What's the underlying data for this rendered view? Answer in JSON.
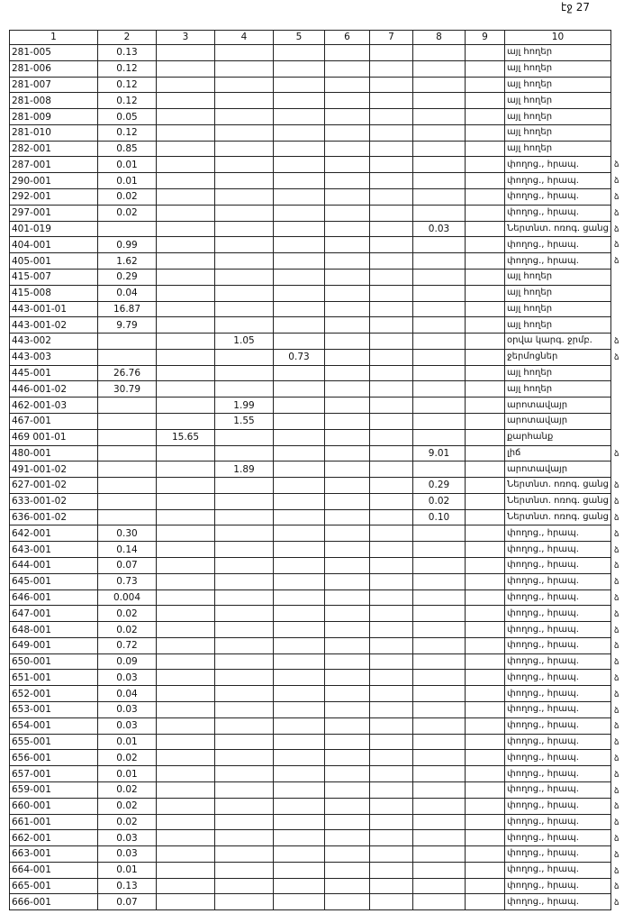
{
  "header": {
    "page": "էջ 27"
  },
  "table": {
    "columns": [
      "1",
      "2",
      "3",
      "4",
      "5",
      "6",
      "7",
      "8",
      "9",
      "10"
    ],
    "rows": [
      {
        "c": [
          "281-005",
          "0.13",
          null,
          null,
          null,
          null,
          null,
          null,
          null,
          "այլ հողեր"
        ]
      },
      {
        "c": [
          "281-006",
          "0.12",
          null,
          null,
          null,
          null,
          null,
          null,
          null,
          "այլ հողեր"
        ]
      },
      {
        "c": [
          "281-007",
          "0.12",
          null,
          null,
          null,
          null,
          null,
          null,
          null,
          "այլ հողեր"
        ]
      },
      {
        "c": [
          "281-008",
          "0.12",
          null,
          null,
          null,
          null,
          null,
          null,
          null,
          "այլ հողեր"
        ]
      },
      {
        "c": [
          "281-009",
          "0.05",
          null,
          null,
          null,
          null,
          null,
          null,
          null,
          "այլ հողեր"
        ]
      },
      {
        "c": [
          "281-010",
          "0.12",
          null,
          null,
          null,
          null,
          null,
          null,
          null,
          "այլ հողեր"
        ]
      },
      {
        "c": [
          "282-001",
          "0.85",
          null,
          null,
          null,
          null,
          null,
          null,
          null,
          "այլ հողեր"
        ]
      },
      {
        "c": [
          "287-001",
          "0.01",
          null,
          null,
          null,
          null,
          null,
          null,
          null,
          "փողոց., հրապ."
        ],
        "m": "ձ"
      },
      {
        "c": [
          "290-001",
          "0.01",
          null,
          null,
          null,
          null,
          null,
          null,
          null,
          "փողոց., հրապ."
        ],
        "m": "ձ"
      },
      {
        "c": [
          "292-001",
          "0.02",
          null,
          null,
          null,
          null,
          null,
          null,
          null,
          "փողոց., հրապ."
        ],
        "m": "ձ"
      },
      {
        "c": [
          "297-001",
          "0.02",
          null,
          null,
          null,
          null,
          null,
          null,
          null,
          "փողոց., հրապ."
        ],
        "m": "ձ"
      },
      {
        "c": [
          "401-019",
          null,
          null,
          null,
          null,
          null,
          null,
          "0.03",
          null,
          "Ներտնտ. ոռոգ. ցանց"
        ],
        "m": "ձ"
      },
      {
        "c": [
          "404-001",
          "0.99",
          null,
          null,
          null,
          null,
          null,
          null,
          null,
          "փողոց., հրապ."
        ],
        "m": "ձ"
      },
      {
        "c": [
          "405-001",
          "1.62",
          null,
          null,
          null,
          null,
          null,
          null,
          null,
          "փողոց., հրապ."
        ],
        "m": "ձ"
      },
      {
        "c": [
          "415-007",
          "0.29",
          null,
          null,
          null,
          null,
          null,
          null,
          null,
          "այլ հողեր"
        ]
      },
      {
        "c": [
          "415-008",
          "0.04",
          null,
          null,
          null,
          null,
          null,
          null,
          null,
          "այլ հողեր"
        ]
      },
      {
        "c": [
          "443-001-01",
          "16.87",
          null,
          null,
          null,
          null,
          null,
          null,
          null,
          "այլ հողեր"
        ]
      },
      {
        "c": [
          "443-001-02",
          "9.79",
          null,
          null,
          null,
          null,
          null,
          null,
          null,
          "այլ հողեր"
        ]
      },
      {
        "c": [
          "443-002",
          null,
          null,
          "1.05",
          null,
          null,
          null,
          null,
          null,
          "օրվա կարգ. ջրմբ."
        ],
        "m": "ձ"
      },
      {
        "c": [
          "443-003",
          null,
          null,
          null,
          "0.73",
          null,
          null,
          null,
          null,
          "ջերմոցներ"
        ],
        "m": "ձ"
      },
      {
        "c": [
          "445-001",
          "26.76",
          null,
          null,
          null,
          null,
          null,
          null,
          null,
          "այլ հողեր"
        ]
      },
      {
        "c": [
          "446-001-02",
          "30.79",
          null,
          null,
          null,
          null,
          null,
          null,
          null,
          "այլ հողեր"
        ]
      },
      {
        "c": [
          "462-001-03",
          null,
          null,
          "1.99",
          null,
          null,
          null,
          null,
          null,
          "արոտավայր"
        ]
      },
      {
        "c": [
          "467-001",
          null,
          null,
          "1.55",
          null,
          null,
          null,
          null,
          null,
          "արոտավայր"
        ]
      },
      {
        "c": [
          "469 001-01",
          null,
          "15.65",
          null,
          null,
          null,
          null,
          null,
          null,
          "քարհանք"
        ]
      },
      {
        "c": [
          "480-001",
          null,
          null,
          null,
          null,
          null,
          null,
          "9.01",
          null,
          "լիճ"
        ],
        "m": "ձ"
      },
      {
        "c": [
          "491-001-02",
          null,
          null,
          "1.89",
          null,
          null,
          null,
          null,
          null,
          "արոտավայր"
        ]
      },
      {
        "c": [
          "627-001-02",
          null,
          null,
          null,
          null,
          null,
          null,
          "0.29",
          null,
          "Ներտնտ. ոռոգ. ցանց"
        ],
        "m": "ձ"
      },
      {
        "c": [
          "633-001-02",
          null,
          null,
          null,
          null,
          null,
          null,
          "0.02",
          null,
          "Ներտնտ. ոռոգ. ցանց"
        ],
        "m": "ձ"
      },
      {
        "c": [
          "636-001-02",
          null,
          null,
          null,
          null,
          null,
          null,
          "0.10",
          null,
          "Ներտնտ. ոռոգ. ցանց"
        ],
        "m": "ձ"
      },
      {
        "c": [
          "642-001",
          "0.30",
          null,
          null,
          null,
          null,
          null,
          null,
          null,
          "փողոց., հրապ."
        ],
        "m": "ձ"
      },
      {
        "c": [
          "643-001",
          "0.14",
          null,
          null,
          null,
          null,
          null,
          null,
          null,
          "փողոց., հրապ."
        ],
        "m": "ձ"
      },
      {
        "c": [
          "644-001",
          "0.07",
          null,
          null,
          null,
          null,
          null,
          null,
          null,
          "փողոց., հրապ."
        ],
        "m": "ձ"
      },
      {
        "c": [
          "645-001",
          "0.73",
          null,
          null,
          null,
          null,
          null,
          null,
          null,
          "փողոց., հրապ."
        ],
        "m": "ձ"
      },
      {
        "c": [
          "646-001",
          "0.004",
          null,
          null,
          null,
          null,
          null,
          null,
          null,
          "փողոց., հրապ."
        ],
        "m": "ձ"
      },
      {
        "c": [
          "647-001",
          "0.02",
          null,
          null,
          null,
          null,
          null,
          null,
          null,
          "փողոց., հրապ."
        ],
        "m": "ձ"
      },
      {
        "c": [
          "648-001",
          "0.02",
          null,
          null,
          null,
          null,
          null,
          null,
          null,
          "փողոց., հրապ."
        ],
        "m": "ձ"
      },
      {
        "c": [
          "649-001",
          "0.72",
          null,
          null,
          null,
          null,
          null,
          null,
          null,
          "փողոց., հրապ."
        ],
        "m": "ձ"
      },
      {
        "c": [
          "650-001",
          "0.09",
          null,
          null,
          null,
          null,
          null,
          null,
          null,
          "փողոց., հրապ."
        ],
        "m": "ձ"
      },
      {
        "c": [
          "651-001",
          "0.03",
          null,
          null,
          null,
          null,
          null,
          null,
          null,
          "փողոց., հրապ."
        ],
        "m": "ձ"
      },
      {
        "c": [
          "652-001",
          "0.04",
          null,
          null,
          null,
          null,
          null,
          null,
          null,
          "փողոց., հրապ."
        ],
        "m": "ձ"
      },
      {
        "c": [
          "653-001",
          "0.03",
          null,
          null,
          null,
          null,
          null,
          null,
          null,
          "փողոց., հրապ."
        ],
        "m": "ձ"
      },
      {
        "c": [
          "654-001",
          "0.03",
          null,
          null,
          null,
          null,
          null,
          null,
          null,
          "փողոց., հրապ."
        ],
        "m": "ձ"
      },
      {
        "c": [
          "655-001",
          "0.01",
          null,
          null,
          null,
          null,
          null,
          null,
          null,
          "փողոց., հրապ."
        ],
        "m": "ձ"
      },
      {
        "c": [
          "656-001",
          "0.02",
          null,
          null,
          null,
          null,
          null,
          null,
          null,
          "փողոց., հրապ."
        ],
        "m": "ձ"
      },
      {
        "c": [
          "657-001",
          "0.01",
          null,
          null,
          null,
          null,
          null,
          null,
          null,
          "փողոց., հրապ."
        ],
        "m": "ձ"
      },
      {
        "c": [
          "659-001",
          "0.02",
          null,
          null,
          null,
          null,
          null,
          null,
          null,
          "փողոց., հրապ."
        ],
        "m": "ձ"
      },
      {
        "c": [
          "660-001",
          "0.02",
          null,
          null,
          null,
          null,
          null,
          null,
          null,
          "փողոց., հրապ."
        ],
        "m": "ձ"
      },
      {
        "c": [
          "661-001",
          "0.02",
          null,
          null,
          null,
          null,
          null,
          null,
          null,
          "փողոց., հրապ."
        ],
        "m": "ձ"
      },
      {
        "c": [
          "662-001",
          "0.03",
          null,
          null,
          null,
          null,
          null,
          null,
          null,
          "փողոց., հրապ."
        ],
        "m": "ձ"
      },
      {
        "c": [
          "663-001",
          "0.03",
          null,
          null,
          null,
          null,
          null,
          null,
          null,
          "փողոց., հրապ."
        ],
        "m": "ձ"
      },
      {
        "c": [
          "664-001",
          "0.01",
          null,
          null,
          null,
          null,
          null,
          null,
          null,
          "փողոց., հրապ."
        ],
        "m": "ձ"
      },
      {
        "c": [
          "665-001",
          "0.13",
          null,
          null,
          null,
          null,
          null,
          null,
          null,
          "փողոց., հրապ."
        ],
        "m": "ձ"
      },
      {
        "c": [
          "666-001",
          "0.07",
          null,
          null,
          null,
          null,
          null,
          null,
          null,
          "փողոց., հրապ."
        ],
        "m": "ձ"
      }
    ]
  }
}
